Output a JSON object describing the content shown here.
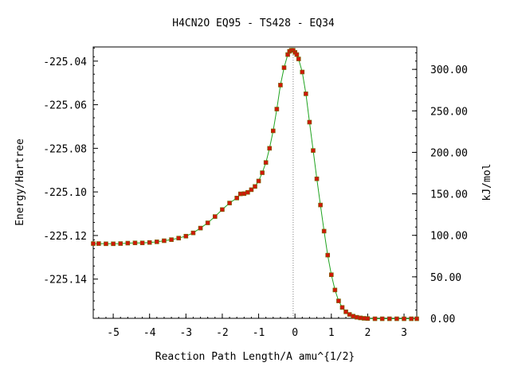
{
  "chart_data": {
    "type": "line",
    "title": "H4CN2O   EQ95 - TS428 - EQ34",
    "xlabel": "Reaction Path Length/A amu^{1/2}",
    "ylabel": "Energy/Hartree",
    "y2label": "kJ/mol",
    "xlim": [
      -5.55,
      3.35
    ],
    "ylim": [
      -225.158,
      -225.0335
    ],
    "y2lim": [
      0,
      327
    ],
    "x_ticks": [
      -5,
      -4,
      -3,
      -2,
      -1,
      0,
      1,
      2,
      3
    ],
    "x_tick_labels": [
      "-5",
      "-4",
      "-3",
      "-2",
      "-1",
      "0",
      "1",
      "2",
      "3"
    ],
    "y_ticks": [
      -225.04,
      -225.06,
      -225.08,
      -225.1,
      -225.12,
      -225.14
    ],
    "y_tick_labels": [
      "-225.04",
      "-225.06",
      "-225.08",
      "-225.10",
      "-225.12",
      "-225.14"
    ],
    "y2_ticks": [
      300,
      250,
      200,
      150,
      100,
      50,
      0
    ],
    "y2_tick_labels": [
      "300.00",
      "250.00",
      "200.00",
      "150.00",
      "100.00",
      "50.00",
      "0.00"
    ],
    "ts_x": -0.05,
    "grid": false,
    "colors": {
      "line": "#1fa31f",
      "points": "#d01808",
      "ts_marker": "#777777"
    },
    "x": [
      -5.55,
      -5.4,
      -5.2,
      -5.0,
      -4.8,
      -4.6,
      -4.4,
      -4.2,
      -4.0,
      -3.8,
      -3.6,
      -3.4,
      -3.2,
      -3.0,
      -2.8,
      -2.6,
      -2.4,
      -2.2,
      -2.0,
      -1.8,
      -1.6,
      -1.5,
      -1.4,
      -1.3,
      -1.2,
      -1.1,
      -1.0,
      -0.9,
      -0.8,
      -0.7,
      -0.6,
      -0.5,
      -0.4,
      -0.3,
      -0.2,
      -0.15,
      -0.1,
      -0.05,
      0.0,
      0.05,
      0.1,
      0.2,
      0.3,
      0.4,
      0.5,
      0.6,
      0.7,
      0.8,
      0.9,
      1.0,
      1.1,
      1.2,
      1.3,
      1.4,
      1.5,
      1.6,
      1.7,
      1.8,
      1.9,
      2.0,
      2.2,
      2.4,
      2.6,
      2.8,
      3.0,
      3.2,
      3.35
    ],
    "values": [
      -225.1237,
      -225.1237,
      -225.1238,
      -225.1238,
      -225.1237,
      -225.1235,
      -225.1234,
      -225.1234,
      -225.1232,
      -225.1229,
      -225.1224,
      -225.1219,
      -225.1212,
      -225.1203,
      -225.1188,
      -225.1166,
      -225.1142,
      -225.1113,
      -225.1081,
      -225.1051,
      -225.1028,
      -225.1009,
      -225.1008,
      -225.1002,
      -225.099,
      -225.0975,
      -225.095,
      -225.0912,
      -225.0865,
      -225.08,
      -225.072,
      -225.062,
      -225.051,
      -225.043,
      -225.037,
      -225.0355,
      -225.035,
      -225.035,
      -225.036,
      -225.037,
      -225.039,
      -225.045,
      -225.055,
      -225.068,
      -225.081,
      -225.094,
      -225.106,
      -225.118,
      -225.129,
      -225.138,
      -225.145,
      -225.15,
      -225.153,
      -225.155,
      -225.1562,
      -225.157,
      -225.1575,
      -225.1578,
      -225.158,
      -225.1581,
      -225.1582,
      -225.1582,
      -225.1582,
      -225.1582,
      -225.1582,
      -225.1582,
      -225.1582
    ]
  }
}
